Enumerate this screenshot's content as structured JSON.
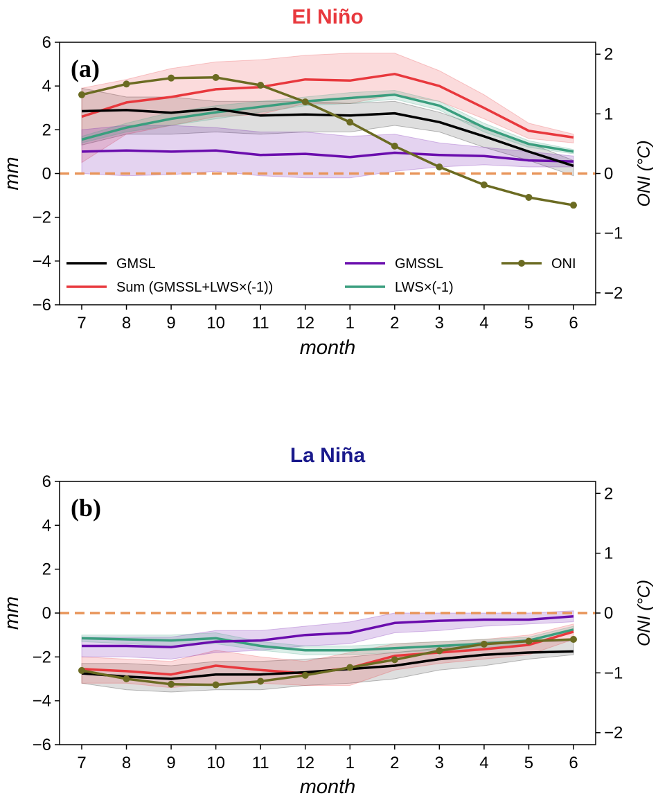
{
  "chart_data": [
    {
      "type": "line",
      "title": "El Niño",
      "title_color": "#e8383d",
      "panel_label": "(a)",
      "xlabel": "month",
      "ylabel": "mm",
      "y2label": "ONI (°C)",
      "ylim": [
        -6,
        6
      ],
      "y2lim": [
        -2.2,
        2.2
      ],
      "yticks": [
        "6",
        "4",
        "2",
        "0",
        "−2",
        "−4",
        "−6"
      ],
      "y2ticks": [
        "2",
        "1",
        "0",
        "−1",
        "−2"
      ],
      "categories": [
        "7",
        "8",
        "9",
        "10",
        "11",
        "12",
        "1",
        "2",
        "3",
        "4",
        "5",
        "6"
      ],
      "zero_line": 0,
      "series": [
        {
          "name": "GMSL",
          "color": "#000000",
          "values": [
            2.85,
            2.9,
            2.78,
            2.95,
            2.65,
            2.7,
            2.65,
            2.75,
            2.35,
            1.7,
            1.0,
            0.35
          ],
          "lower": [
            1.3,
            1.8,
            1.8,
            1.9,
            1.8,
            1.9,
            1.9,
            2.2,
            1.9,
            1.2,
            0.6,
            -0.1
          ],
          "upper": [
            3.9,
            3.5,
            3.5,
            3.3,
            3.3,
            3.3,
            3.2,
            3.3,
            2.8,
            2.1,
            1.4,
            0.6
          ]
        },
        {
          "name": "Sum (GMSSL+LWS×(-1))",
          "color": "#e8383d",
          "values": [
            2.6,
            3.25,
            3.5,
            3.85,
            3.95,
            4.3,
            4.25,
            4.55,
            4.0,
            3.0,
            1.95,
            1.65
          ],
          "lower": [
            0.5,
            1.8,
            2.2,
            2.6,
            2.7,
            3.2,
            3.2,
            3.6,
            3.3,
            2.5,
            1.6,
            1.4
          ],
          "upper": [
            3.9,
            4.3,
            4.8,
            5.1,
            5.2,
            5.4,
            5.5,
            5.5,
            4.7,
            3.6,
            2.3,
            1.8
          ]
        },
        {
          "name": "GMSSL",
          "color": "#6a0dad",
          "values": [
            1.0,
            1.05,
            1.0,
            1.05,
            0.85,
            0.9,
            0.75,
            0.95,
            0.85,
            0.8,
            0.6,
            0.55
          ],
          "lower": [
            0.0,
            -0.1,
            -0.05,
            0.1,
            -0.1,
            -0.2,
            -0.2,
            0.1,
            0.3,
            0.4,
            0.3,
            0.3
          ],
          "upper": [
            2.0,
            2.2,
            2.2,
            2.1,
            1.9,
            1.9,
            1.7,
            1.8,
            1.4,
            1.2,
            1.0,
            0.8
          ]
        },
        {
          "name": "LWS×(-1)",
          "color": "#3a9e7e",
          "values": [
            1.55,
            2.1,
            2.5,
            2.8,
            3.05,
            3.3,
            3.45,
            3.6,
            3.1,
            2.1,
            1.35,
            1.0
          ],
          "lower": [
            1.4,
            1.9,
            2.2,
            2.5,
            2.8,
            3.1,
            3.2,
            3.4,
            2.9,
            1.9,
            1.2,
            0.9
          ],
          "upper": [
            1.7,
            2.3,
            2.8,
            3.1,
            3.3,
            3.5,
            3.7,
            3.8,
            3.3,
            2.3,
            1.5,
            1.1
          ]
        },
        {
          "name": "ONI",
          "color": "#6b6b22",
          "axis": "right",
          "markers": true,
          "values": [
            1.32,
            1.5,
            1.6,
            1.61,
            1.48,
            1.2,
            0.86,
            0.46,
            0.11,
            -0.19,
            -0.4,
            -0.53
          ]
        }
      ],
      "legend": [
        "GMSL",
        "Sum (GMSSL+LWS×(-1))",
        "GMSSL",
        "LWS×(-1)",
        "ONI"
      ]
    },
    {
      "type": "line",
      "title": "La Niña",
      "title_color": "#1a1a8c",
      "panel_label": "(b)",
      "xlabel": "month",
      "ylabel": "mm",
      "y2label": "ONI (°C)",
      "ylim": [
        -6,
        6
      ],
      "y2lim": [
        -2.2,
        2.2
      ],
      "yticks": [
        "6",
        "4",
        "2",
        "0",
        "−2",
        "−4",
        "−6"
      ],
      "y2ticks": [
        "2",
        "1",
        "0",
        "−1",
        "−2"
      ],
      "categories": [
        "7",
        "8",
        "9",
        "10",
        "11",
        "12",
        "1",
        "2",
        "3",
        "4",
        "5",
        "6"
      ],
      "zero_line": 0,
      "series": [
        {
          "name": "GMSL",
          "color": "#000000",
          "values": [
            -2.75,
            -2.9,
            -3.0,
            -2.8,
            -2.8,
            -2.7,
            -2.55,
            -2.4,
            -2.1,
            -1.9,
            -1.8,
            -1.75
          ],
          "lower": [
            -3.2,
            -3.5,
            -3.6,
            -3.5,
            -3.5,
            -3.3,
            -3.2,
            -3.0,
            -2.6,
            -2.4,
            -2.1,
            -1.9
          ],
          "upper": [
            -2.3,
            -2.3,
            -2.4,
            -2.2,
            -2.2,
            -2.1,
            -2.0,
            -1.8,
            -1.6,
            -1.3,
            -1.3,
            -1.3
          ]
        },
        {
          "name": "Sum (GMSSL+LWS×(-1))",
          "color": "#e8383d",
          "values": [
            -2.55,
            -2.65,
            -2.8,
            -2.4,
            -2.6,
            -2.75,
            -2.5,
            -1.95,
            -1.8,
            -1.65,
            -1.45,
            -0.85
          ],
          "lower": [
            -3.2,
            -3.2,
            -3.4,
            -3.2,
            -3.2,
            -3.3,
            -3.3,
            -2.6,
            -2.3,
            -2.1,
            -1.9,
            -1.2
          ],
          "upper": [
            -2.0,
            -2.1,
            -2.2,
            -1.7,
            -2.0,
            -2.2,
            -1.8,
            -1.4,
            -1.3,
            -1.2,
            -1.0,
            -0.5
          ]
        },
        {
          "name": "GMSSL",
          "color": "#6a0dad",
          "values": [
            -1.5,
            -1.5,
            -1.55,
            -1.3,
            -1.25,
            -1.0,
            -0.9,
            -0.45,
            -0.35,
            -0.3,
            -0.3,
            -0.15
          ],
          "lower": [
            -2.0,
            -2.0,
            -2.1,
            -1.8,
            -1.7,
            -1.5,
            -1.4,
            -0.9,
            -0.8,
            -0.6,
            -0.5,
            -0.4
          ],
          "upper": [
            -1.1,
            -1.1,
            -1.1,
            -0.8,
            -0.8,
            -0.6,
            -0.4,
            0.0,
            0.0,
            0.0,
            0.0,
            0.1
          ]
        },
        {
          "name": "LWS×(-1)",
          "color": "#3a9e7e",
          "values": [
            -1.15,
            -1.2,
            -1.25,
            -1.15,
            -1.5,
            -1.7,
            -1.7,
            -1.6,
            -1.5,
            -1.4,
            -1.25,
            -0.75
          ],
          "lower": [
            -1.3,
            -1.4,
            -1.5,
            -1.4,
            -1.7,
            -1.9,
            -1.9,
            -1.8,
            -1.7,
            -1.6,
            -1.4,
            -0.9
          ],
          "upper": [
            -1.0,
            -1.0,
            -1.0,
            -0.9,
            -1.3,
            -1.5,
            -1.5,
            -1.4,
            -1.3,
            -1.2,
            -1.1,
            -0.6
          ]
        },
        {
          "name": "ONI",
          "color": "#6b6b22",
          "axis": "right",
          "markers": true,
          "values": [
            -0.96,
            -1.1,
            -1.19,
            -1.2,
            -1.14,
            -1.04,
            -0.91,
            -0.78,
            -0.63,
            -0.52,
            -0.47,
            -0.44
          ]
        }
      ]
    }
  ]
}
